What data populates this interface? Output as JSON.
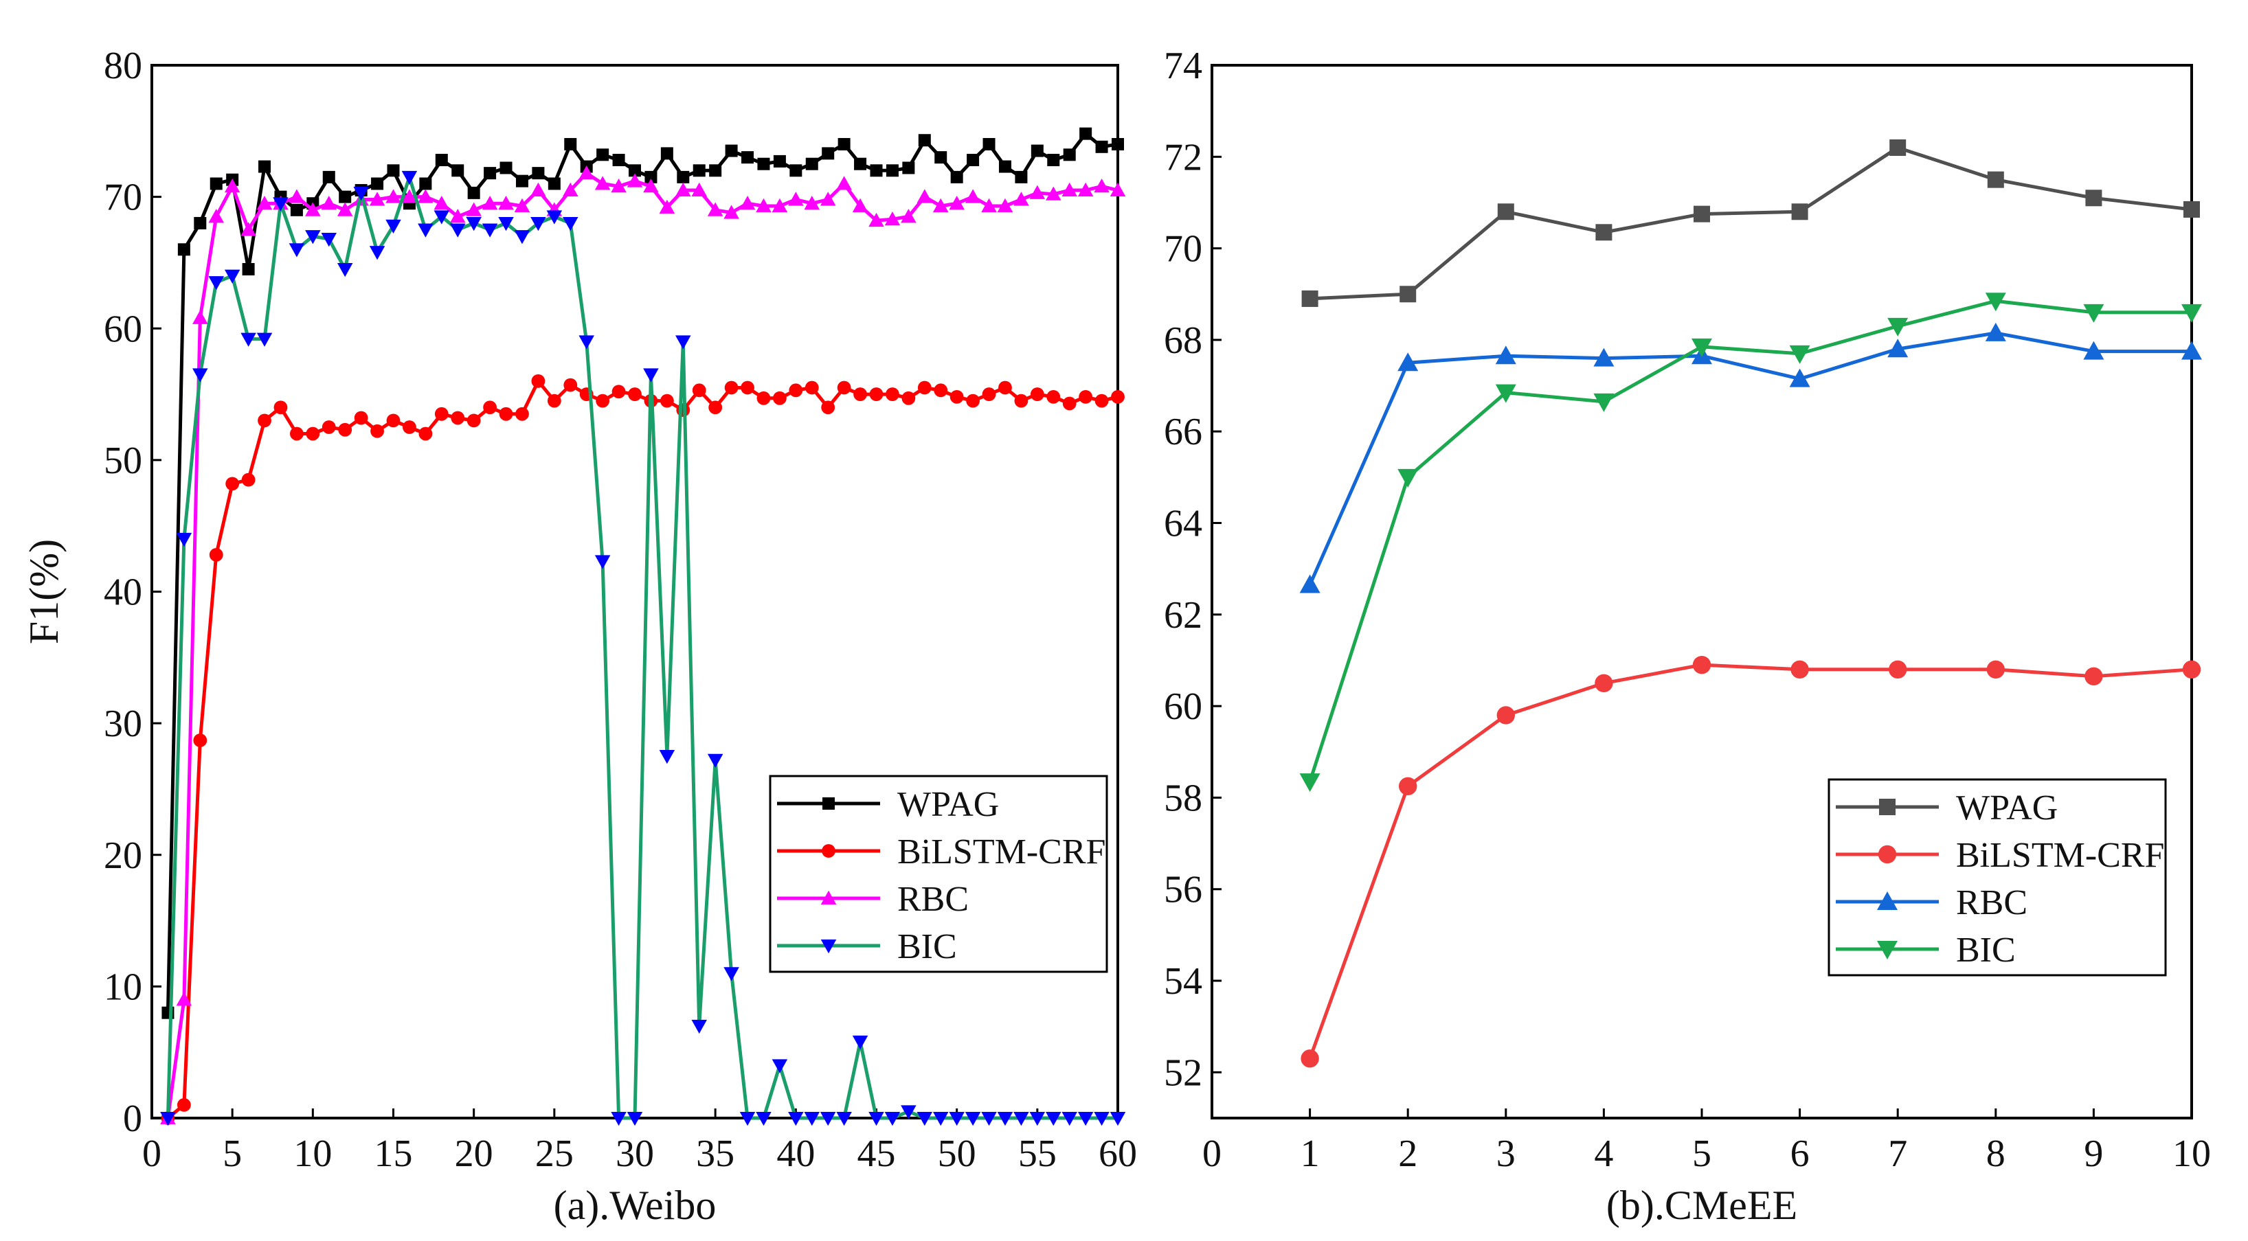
{
  "chart_data": [
    {
      "type": "line",
      "panel_label": "(a).Weibo",
      "ylabel": "F1(%)",
      "xlabel": "",
      "xlim": [
        0,
        60
      ],
      "ylim": [
        0,
        80
      ],
      "xticks": [
        "0",
        "5",
        "10",
        "15",
        "20",
        "25",
        "30",
        "35",
        "40",
        "45",
        "50",
        "55",
        "60"
      ],
      "yticks": [
        "0",
        "10",
        "20",
        "30",
        "40",
        "50",
        "60",
        "70",
        "80"
      ],
      "legend_position": "lower-right",
      "x": [
        1,
        2,
        3,
        4,
        5,
        6,
        7,
        8,
        9,
        10,
        11,
        12,
        13,
        14,
        15,
        16,
        17,
        18,
        19,
        20,
        21,
        22,
        23,
        24,
        25,
        26,
        27,
        28,
        29,
        30,
        31,
        32,
        33,
        34,
        35,
        36,
        37,
        38,
        39,
        40,
        41,
        42,
        43,
        44,
        45,
        46,
        47,
        48,
        49,
        50,
        51,
        52,
        53,
        54,
        55,
        56,
        57,
        58,
        59,
        60
      ],
      "series": [
        {
          "name": "WPAG",
          "color": "#000000",
          "marker": "square",
          "values": [
            8,
            66,
            68,
            71,
            71.3,
            64.5,
            72.3,
            70,
            69,
            69.5,
            71.5,
            70,
            70.5,
            71,
            72,
            69.5,
            71,
            72.8,
            72,
            70.3,
            71.8,
            72.2,
            71.2,
            71.8,
            71,
            74,
            72.3,
            73.2,
            72.8,
            72,
            71.5,
            73.3,
            71.5,
            72,
            72,
            73.5,
            73,
            72.5,
            72.7,
            72,
            72.5,
            73.3,
            74,
            72.5,
            72,
            72,
            72.2,
            74.3,
            73,
            71.5,
            72.8,
            74,
            72.3,
            71.5,
            73.5,
            72.8,
            73.2,
            74.8,
            73.8,
            74
          ]
        },
        {
          "name": "BiLSTM-CRF",
          "color": "#ff0000",
          "marker": "circle",
          "values": [
            0,
            1,
            28.7,
            42.8,
            48.2,
            48.5,
            53,
            54,
            52,
            52,
            52.5,
            52.3,
            53.2,
            52.2,
            53,
            52.5,
            52,
            53.5,
            53.2,
            53,
            54,
            53.5,
            53.5,
            56,
            54.5,
            55.7,
            55,
            54.5,
            55.2,
            55,
            54.5,
            54.5,
            53.8,
            55.3,
            54,
            55.5,
            55.5,
            54.7,
            54.7,
            55.3,
            55.5,
            54,
            55.5,
            55,
            55,
            55,
            54.7,
            55.5,
            55.3,
            54.8,
            54.5,
            55,
            55.5,
            54.5,
            55,
            54.8,
            54.3,
            54.8,
            54.5,
            54.8
          ]
        },
        {
          "name": "RBC",
          "color": "#ff00ff",
          "marker": "triangle-up",
          "values": [
            0,
            9,
            60.8,
            68.5,
            70.8,
            67.5,
            69.5,
            69.5,
            70,
            69,
            69.5,
            69,
            69.8,
            69.8,
            70,
            70,
            70,
            69.5,
            68.5,
            69,
            69.5,
            69.5,
            69.3,
            70.5,
            69,
            70.5,
            71.8,
            71,
            70.8,
            71.2,
            70.8,
            69.2,
            70.5,
            70.5,
            69,
            68.8,
            69.5,
            69.3,
            69.3,
            69.8,
            69.5,
            69.8,
            71,
            69.3,
            68.2,
            68.3,
            68.5,
            70,
            69.3,
            69.5,
            70,
            69.3,
            69.3,
            69.8,
            70.3,
            70.2,
            70.5,
            70.5,
            70.8,
            70.5
          ]
        },
        {
          "name": "BIC",
          "color": "#1a9e6a",
          "marker_color": "#0000ff",
          "marker": "triangle-down",
          "values": [
            0,
            44,
            56.5,
            63.5,
            64,
            59.2,
            59.2,
            69.5,
            66,
            67,
            66.8,
            64.5,
            70.3,
            65.8,
            67.8,
            71.5,
            67.5,
            68.5,
            67.5,
            68,
            67.5,
            68,
            67,
            68,
            68.5,
            68,
            59,
            42.3,
            0,
            0,
            56.5,
            27.5,
            59,
            7,
            27.2,
            11,
            0,
            0,
            4,
            0,
            0,
            0,
            0,
            5.8,
            0,
            0,
            0.5,
            0,
            0,
            0,
            0,
            0,
            0,
            0,
            0,
            0,
            0,
            0,
            0,
            0
          ]
        }
      ]
    },
    {
      "type": "line",
      "panel_label": "(b).CMeEE",
      "ylabel": "",
      "xlabel": "",
      "xlim": [
        0,
        10
      ],
      "ylim": [
        51,
        74
      ],
      "xticks": [
        "0",
        "1",
        "2",
        "3",
        "4",
        "5",
        "6",
        "7",
        "8",
        "9",
        "10"
      ],
      "yticks": [
        "52",
        "54",
        "56",
        "58",
        "60",
        "62",
        "64",
        "66",
        "68",
        "70",
        "72",
        "74"
      ],
      "legend_position": "lower-right",
      "x": [
        1,
        2,
        3,
        4,
        5,
        6,
        7,
        8,
        9,
        10
      ],
      "series": [
        {
          "name": "WPAG",
          "color": "#505050",
          "marker": "square",
          "values": [
            68.9,
            69.0,
            70.8,
            70.35,
            70.75,
            70.8,
            72.2,
            71.5,
            71.1,
            70.85
          ]
        },
        {
          "name": "BiLSTM-CRF",
          "color": "#f03c3c",
          "marker": "circle",
          "values": [
            52.3,
            58.25,
            59.8,
            60.5,
            60.9,
            60.8,
            60.8,
            60.8,
            60.65,
            60.8
          ]
        },
        {
          "name": "RBC",
          "color": "#1467d6",
          "marker": "triangle-up",
          "values": [
            62.65,
            67.5,
            67.65,
            67.6,
            67.65,
            67.15,
            67.8,
            68.15,
            67.75,
            67.75
          ]
        },
        {
          "name": "BIC",
          "color": "#1ba84e",
          "marker": "triangle-down",
          "values": [
            58.35,
            65.0,
            66.85,
            66.65,
            67.85,
            67.7,
            68.3,
            68.85,
            68.6,
            68.6
          ]
        }
      ]
    }
  ]
}
